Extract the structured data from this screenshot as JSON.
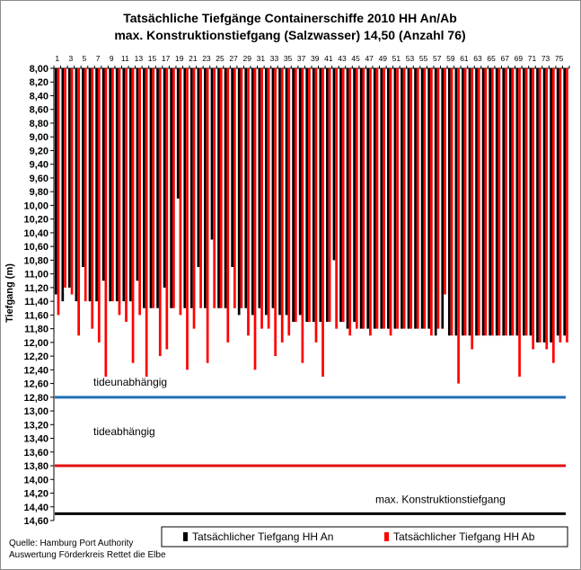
{
  "chart_data": {
    "type": "bar",
    "title": "Tatsächliche Tiefgänge Containerschiffe 2010 HH An/Ab",
    "subtitle": "max. Konstruktionstiefgang (Salzwasser) 14,50 (Anzahl 76)",
    "ylabel": "Tiefgang (m)",
    "ylim": [
      8.0,
      14.6
    ],
    "y_inverted": true,
    "y_tick_step": 0.2,
    "x_tick_labels": [
      "1",
      "3",
      "5",
      "7",
      "9",
      "11",
      "13",
      "15",
      "17",
      "19",
      "21",
      "23",
      "25",
      "27",
      "29",
      "31",
      "33",
      "35",
      "37",
      "39",
      "41",
      "43",
      "45",
      "47",
      "49",
      "51",
      "53",
      "55",
      "57",
      "59",
      "61",
      "63",
      "65",
      "67",
      "69",
      "71",
      "73",
      "75"
    ],
    "categories": [
      1,
      2,
      3,
      4,
      5,
      6,
      7,
      8,
      9,
      10,
      11,
      12,
      13,
      14,
      15,
      16,
      17,
      18,
      19,
      20,
      21,
      22,
      23,
      24,
      25,
      26,
      27,
      28,
      29,
      30,
      31,
      32,
      33,
      34,
      35,
      36,
      37,
      38,
      39,
      40,
      41,
      42,
      43,
      44,
      45,
      46,
      47,
      48,
      49,
      50,
      51,
      52,
      53,
      54,
      55,
      56,
      57,
      58,
      59,
      60,
      61,
      62,
      63,
      64,
      65,
      66,
      67,
      68,
      69,
      70,
      71,
      72,
      73,
      74,
      75,
      76
    ],
    "series": [
      {
        "name": "Tatsächlicher Tiefgang HH An",
        "color": "#000000",
        "values": [
          11.3,
          11.4,
          11.2,
          11.4,
          10.9,
          11.4,
          11.4,
          11.1,
          11.4,
          11.4,
          11.4,
          11.4,
          11.1,
          11.5,
          11.5,
          11.5,
          11.2,
          11.5,
          9.9,
          11.5,
          11.5,
          10.9,
          11.5,
          10.5,
          11.5,
          11.5,
          10.9,
          11.6,
          11.5,
          11.6,
          11.5,
          11.6,
          11.5,
          11.6,
          11.6,
          11.7,
          11.6,
          11.7,
          11.7,
          11.7,
          11.7,
          10.8,
          11.7,
          11.8,
          11.7,
          11.8,
          11.8,
          11.8,
          11.8,
          11.8,
          11.8,
          11.8,
          11.8,
          11.8,
          11.8,
          11.8,
          11.9,
          11.8,
          11.9,
          11.9,
          11.9,
          11.9,
          11.9,
          11.9,
          11.9,
          11.9,
          11.9,
          11.9,
          11.9,
          11.9,
          11.9,
          12.0,
          12.0,
          12.0,
          11.9,
          11.9
        ]
      },
      {
        "name": "Tatsächlicher Tiefgang HH Ab",
        "color": "#ff0000",
        "values": [
          11.6,
          11.2,
          11.3,
          11.9,
          11.4,
          11.8,
          12.0,
          12.5,
          11.4,
          11.6,
          11.7,
          12.3,
          11.6,
          12.5,
          11.5,
          12.2,
          12.1,
          11.5,
          11.6,
          12.4,
          11.8,
          11.5,
          12.3,
          11.5,
          11.5,
          12.0,
          11.5,
          11.5,
          11.9,
          12.4,
          11.8,
          11.8,
          12.2,
          12.0,
          11.9,
          11.7,
          12.3,
          11.7,
          12.0,
          12.5,
          11.7,
          11.8,
          11.7,
          11.9,
          11.8,
          11.8,
          11.9,
          11.8,
          11.8,
          11.9,
          11.8,
          11.8,
          11.8,
          11.8,
          11.8,
          11.9,
          11.8,
          11.3,
          11.9,
          12.6,
          11.9,
          12.1,
          11.9,
          11.9,
          11.9,
          11.9,
          11.9,
          11.9,
          12.5,
          11.9,
          12.1,
          12.0,
          12.1,
          12.3,
          12.0,
          12.0
        ]
      }
    ],
    "reference_lines": [
      {
        "label": "tideunabhängig",
        "value": 12.8,
        "color": "#1f6fb5"
      },
      {
        "label": "tideabhängig",
        "value": 13.8,
        "color": "#e31010"
      },
      {
        "label": "max. Konstruktionstiefgang",
        "value": 14.5,
        "color": "#000000"
      }
    ],
    "legend_placement": "bottom-right",
    "grid": false
  },
  "source": {
    "line1": "Quelle: Hamburg Port Authority",
    "line2": "Auswertung Förderkreis Rettet die Elbe"
  }
}
